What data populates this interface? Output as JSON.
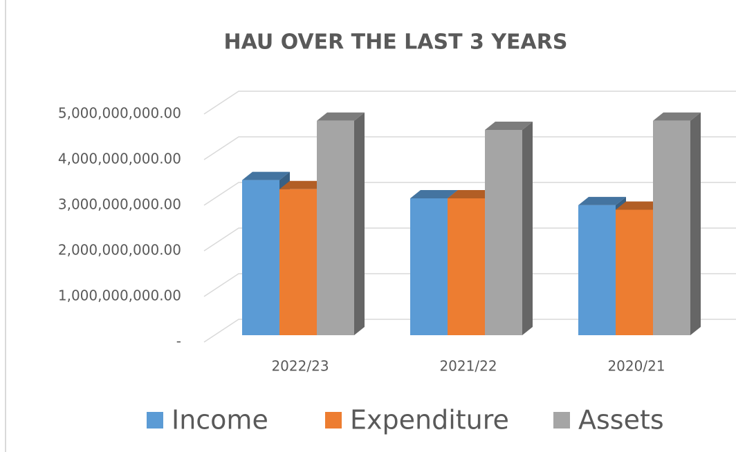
{
  "chart_data": {
    "type": "bar3d",
    "title": "HAU OVER THE LAST 3 YEARS",
    "categories": [
      "2022/23",
      "2021/22",
      "2020/21"
    ],
    "series": [
      {
        "name": "Income",
        "color": "#5b9bd5",
        "values": [
          3400000000,
          3000000000,
          2850000000
        ]
      },
      {
        "name": "Expenditure",
        "color": "#ed7d31",
        "values": [
          3200000000,
          3000000000,
          2750000000
        ]
      },
      {
        "name": "Assets",
        "color": "#a5a5a5",
        "values": [
          4700000000,
          4500000000,
          4700000000
        ]
      }
    ],
    "ylim": [
      0,
      5000000000
    ],
    "yticks": [
      {
        "value": 0,
        "label": "-"
      },
      {
        "value": 1000000000,
        "label": "1,000,000,000.00"
      },
      {
        "value": 2000000000,
        "label": "2,000,000,000.00"
      },
      {
        "value": 3000000000,
        "label": "3,000,000,000.00"
      },
      {
        "value": 4000000000,
        "label": "4,000,000,000.00"
      },
      {
        "value": 5000000000,
        "label": "5,000,000,000.00"
      }
    ],
    "grid": true,
    "legend": "bottom"
  }
}
